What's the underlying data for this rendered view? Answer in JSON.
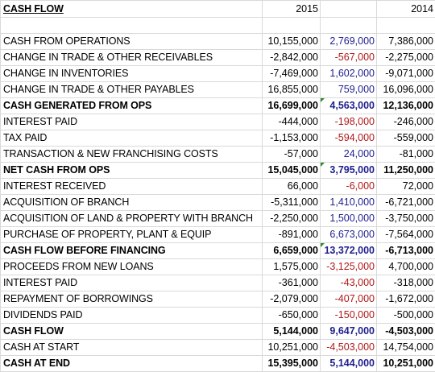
{
  "header": {
    "title": "CASH FLOW",
    "col_a": "2015",
    "col_b": "",
    "col_c": "2014"
  },
  "rows": [
    {
      "label": "CASH FROM OPERATIONS",
      "a": "10,155,000",
      "b": "2,769,000",
      "c": "7,386,000"
    },
    {
      "label": "CHANGE IN TRADE & OTHER RECEIVABLES",
      "a": "-2,842,000",
      "b": "-567,000",
      "c": "-2,275,000"
    },
    {
      "label": "CHANGE IN INVENTORIES",
      "a": "-7,469,000",
      "b": "1,602,000",
      "c": "-9,071,000"
    },
    {
      "label": "CHANGE IN TRADE & OTHER PAYABLES",
      "a": "16,855,000",
      "b": "759,000",
      "c": "16,096,000"
    },
    {
      "label": "CASH GENERATED FROM OPS",
      "a": "16,699,000",
      "b": "4,563,000",
      "c": "12,136,000"
    },
    {
      "label": "INTEREST PAID",
      "a": "-444,000",
      "b": "-198,000",
      "c": "-246,000"
    },
    {
      "label": "TAX PAID",
      "a": "-1,153,000",
      "b": "-594,000",
      "c": "-559,000"
    },
    {
      "label": "TRANSACTION & NEW FRANCHISING COSTS",
      "a": "-57,000",
      "b": "24,000",
      "c": "-81,000"
    },
    {
      "label": "NET CASH FROM OPS",
      "a": "15,045,000",
      "b": "3,795,000",
      "c": "11,250,000"
    },
    {
      "label": "INTEREST RECEIVED",
      "a": "66,000",
      "b": "-6,000",
      "c": "72,000"
    },
    {
      "label": "ACQUISITION OF BRANCH",
      "a": "-5,311,000",
      "b": "1,410,000",
      "c": "-6,721,000"
    },
    {
      "label": "ACQUISITION OF LAND & PROPERTY WITH BRANCH",
      "a": "-2,250,000",
      "b": "1,500,000",
      "c": "-3,750,000"
    },
    {
      "label": "PURCHASE OF PROPERTY, PLANT & EQUIP",
      "a": "-891,000",
      "b": "6,673,000",
      "c": "-7,564,000"
    },
    {
      "label": "CASH FLOW BEFORE FINANCING",
      "a": "6,659,000",
      "b": "13,372,000",
      "c": "-6,713,000"
    },
    {
      "label": "PROCEEDS FROM NEW LOANS",
      "a": "1,575,000",
      "b": "-3,125,000",
      "c": "4,700,000"
    },
    {
      "label": "INTEREST PAID",
      "a": "-361,000",
      "b": "-43,000",
      "c": "-318,000"
    },
    {
      "label": "REPAYMENT OF BORROWINGS",
      "a": "-2,079,000",
      "b": "-407,000",
      "c": "-1,672,000"
    },
    {
      "label": "DIVIDENDS PAID",
      "a": "-650,000",
      "b": "-150,000",
      "c": "-500,000"
    },
    {
      "label": "CASH FLOW",
      "a": "5,144,000",
      "b": "9,647,000",
      "c": "-4,503,000"
    },
    {
      "label": "CASH AT START",
      "a": "10,251,000",
      "b": "-4,503,000",
      "c": "14,754,000"
    },
    {
      "label": "CASH AT END",
      "a": "15,395,000",
      "b": "5,144,000",
      "c": "10,251,000"
    }
  ],
  "colors": {
    "positive_diff": "#1f1f8f",
    "negative_diff": "#b01818",
    "cell_flag": "#2e8b2e",
    "gridline": "#d9d9d9"
  }
}
